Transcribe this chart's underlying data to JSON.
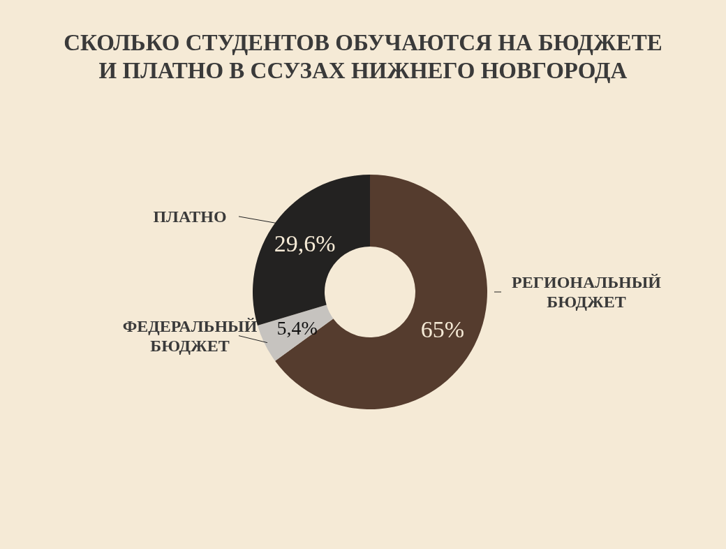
{
  "chart_data": {
    "type": "donut",
    "title": "СКОЛЬКО СТУДЕНТОВ ОБУЧАЮТСЯ НА БЮДЖЕТЕ И ПЛАТНО В ССУЗАХ НИЖНЕГО НОВГОРОДА",
    "categories": [
      "РЕГИОНАЛЬНЫЙ БЮДЖЕТ",
      "ФЕДЕРАЛЬНЫЙ БЮДЖЕТ",
      "ПЛАТНО"
    ],
    "values": [
      65,
      5.4,
      29.6
    ],
    "value_labels": [
      "65%",
      "5,4%",
      "29,6%"
    ],
    "colors": [
      "#553c2e",
      "#c6c3bf",
      "#232221"
    ],
    "legend": false
  }
}
